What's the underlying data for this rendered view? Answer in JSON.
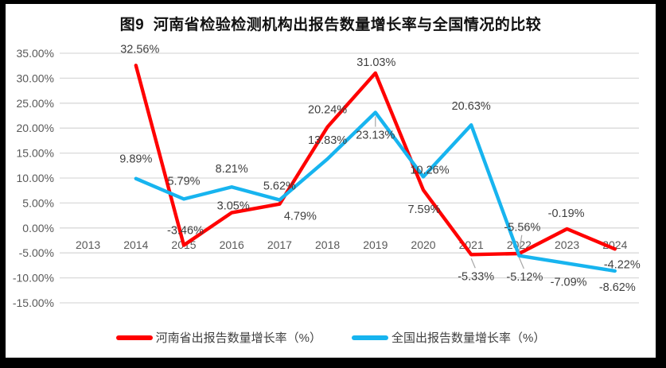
{
  "chart_title": "图9  河南省检验检测机构出报告数量增长率与全国情况的比较",
  "chart_data": {
    "type": "line",
    "title": "图9  河南省检验检测机构出报告数量增长率与全国情况的比较",
    "categories": [
      "2013",
      "2014",
      "2015",
      "2016",
      "2017",
      "2018",
      "2019",
      "2020",
      "2021",
      "2022",
      "2023",
      "2024"
    ],
    "series": [
      {
        "name": "河南省出报告数量增长率（%）",
        "color": "#FF0000",
        "values": [
          null,
          32.56,
          -3.46,
          3.05,
          4.79,
          20.24,
          31.03,
          7.59,
          -5.33,
          -5.12,
          -0.19,
          -4.22
        ],
        "labels": [
          "",
          "32.56%",
          "-3.46%",
          "3.05%",
          "4.79%",
          "20.24%",
          "31.03%",
          "7.59%",
          "-5.33%",
          "-5.12%",
          "-0.19%",
          "-4.22%"
        ],
        "label_offsets": [
          [
            0,
            0
          ],
          [
            5,
            -21
          ],
          [
            2,
            -19
          ],
          [
            2,
            -9
          ],
          [
            26,
            15
          ],
          [
            0,
            -22
          ],
          [
            1,
            -14
          ],
          [
            1,
            24
          ],
          [
            6,
            27
          ],
          [
            7,
            29
          ],
          [
            -1,
            -20
          ],
          [
            9,
            19
          ]
        ],
        "label_leaders": [
          false,
          false,
          false,
          false,
          false,
          false,
          false,
          false,
          true,
          true,
          false,
          false
        ]
      },
      {
        "name": "全国出报告数量增长率（%）",
        "color": "#17B4EF",
        "values": [
          null,
          9.89,
          5.79,
          8.21,
          5.62,
          13.83,
          23.13,
          10.26,
          20.63,
          -5.56,
          -7.09,
          -8.62
        ],
        "labels": [
          "",
          "9.89%",
          "5.79%",
          "8.21%",
          "5.62%",
          "13.83%",
          "23.13%",
          "10.26%",
          "20.63%",
          "-5.56%",
          "-7.09%",
          "-8.62%"
        ],
        "label_offsets": [
          [
            0,
            0
          ],
          [
            0,
            -25
          ],
          [
            0,
            -23
          ],
          [
            0,
            -23
          ],
          [
            0,
            -18
          ],
          [
            0,
            -24
          ],
          [
            0,
            28
          ],
          [
            8,
            -9
          ],
          [
            0,
            -24
          ],
          [
            4,
            -36
          ],
          [
            2,
            23
          ],
          [
            3,
            20
          ]
        ],
        "label_leaders": [
          false,
          false,
          false,
          false,
          false,
          false,
          true,
          false,
          false,
          true,
          false,
          false
        ]
      }
    ],
    "ylim": [
      -15,
      35
    ],
    "ytick_step": 5,
    "ytick_labels": [
      "35.00%",
      "30.00%",
      "25.00%",
      "20.00%",
      "15.00%",
      "10.00%",
      "5.00%",
      "0.00%",
      "-5.00%",
      "-10.00%",
      "-15.00%"
    ],
    "grid": true,
    "legend_position": "bottom",
    "styles": {
      "grid_color": "#D9D9D9",
      "axis_text_color": "#595959",
      "label_text_color": "#3F3F3F",
      "leader_color": "#A6A6A6",
      "background": "#FFFFFF",
      "frame_color": "#000000"
    }
  }
}
